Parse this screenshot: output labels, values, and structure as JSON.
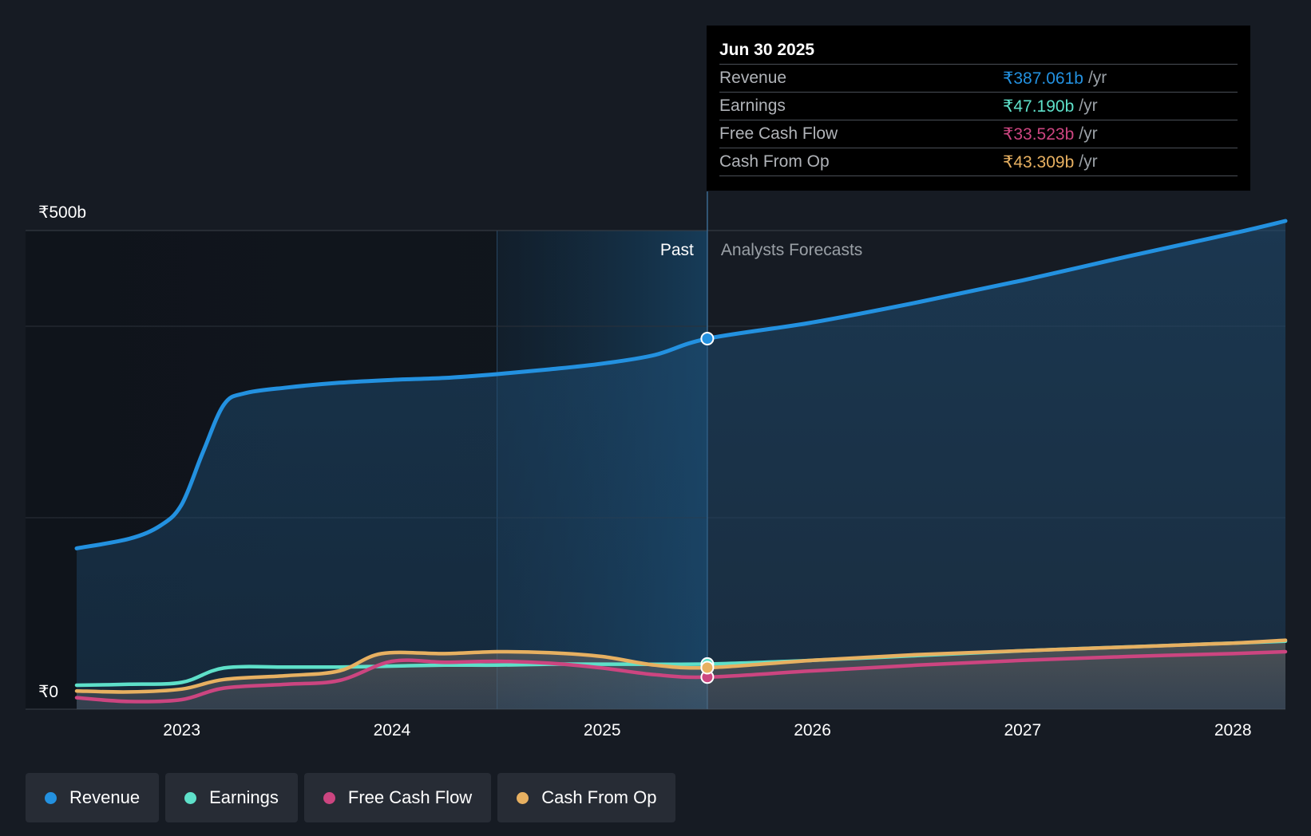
{
  "chart_data": {
    "type": "line",
    "y_axis": {
      "top_label": "₹500b",
      "bottom_label": "₹0",
      "ylim": [
        0,
        500
      ],
      "unit": "₹b"
    },
    "x_axis": {
      "ticks": [
        "2023",
        "2024",
        "2025",
        "2026",
        "2027",
        "2028"
      ],
      "xlim": [
        2022.5,
        2028.25
      ]
    },
    "regions": {
      "past_label": "Past",
      "forecast_label": "Analysts Forecasts",
      "divider_x": 2025.5,
      "highlight_start_x": 2024.5
    },
    "series": [
      {
        "name": "Revenue",
        "color": "#2391e0",
        "points": [
          [
            2022.5,
            168
          ],
          [
            2022.75,
            178
          ],
          [
            2022.9,
            192
          ],
          [
            2023.0,
            214
          ],
          [
            2023.1,
            268
          ],
          [
            2023.2,
            318
          ],
          [
            2023.3,
            330
          ],
          [
            2023.5,
            336
          ],
          [
            2023.75,
            341
          ],
          [
            2024.0,
            344
          ],
          [
            2024.25,
            346
          ],
          [
            2024.5,
            350
          ],
          [
            2024.75,
            355
          ],
          [
            2025.0,
            361
          ],
          [
            2025.25,
            370
          ],
          [
            2025.5,
            387.061
          ],
          [
            2026.0,
            404
          ],
          [
            2026.5,
            425
          ],
          [
            2027.0,
            448
          ],
          [
            2027.5,
            473
          ],
          [
            2028.0,
            497
          ],
          [
            2028.25,
            510
          ]
        ]
      },
      {
        "name": "Earnings",
        "color": "#5ee0c9",
        "points": [
          [
            2022.5,
            25
          ],
          [
            2022.75,
            26
          ],
          [
            2023.0,
            28
          ],
          [
            2023.2,
            43
          ],
          [
            2023.5,
            44
          ],
          [
            2023.75,
            44
          ],
          [
            2024.0,
            45
          ],
          [
            2024.25,
            46
          ],
          [
            2024.5,
            46
          ],
          [
            2024.75,
            47
          ],
          [
            2025.0,
            47
          ],
          [
            2025.5,
            47.19
          ],
          [
            2026.0,
            51
          ],
          [
            2026.5,
            56
          ],
          [
            2027.0,
            61
          ],
          [
            2027.5,
            65
          ],
          [
            2028.0,
            69
          ],
          [
            2028.25,
            71
          ]
        ]
      },
      {
        "name": "Free Cash Flow",
        "color": "#cc4580",
        "points": [
          [
            2022.5,
            12
          ],
          [
            2022.75,
            8
          ],
          [
            2023.0,
            10
          ],
          [
            2023.2,
            22
          ],
          [
            2023.5,
            26
          ],
          [
            2023.75,
            30
          ],
          [
            2024.0,
            50
          ],
          [
            2024.25,
            49
          ],
          [
            2024.5,
            50
          ],
          [
            2024.75,
            48
          ],
          [
            2025.0,
            43
          ],
          [
            2025.25,
            36
          ],
          [
            2025.5,
            33.523
          ],
          [
            2026.0,
            40
          ],
          [
            2026.5,
            46
          ],
          [
            2027.0,
            51
          ],
          [
            2027.5,
            55
          ],
          [
            2028.0,
            58
          ],
          [
            2028.25,
            60
          ]
        ]
      },
      {
        "name": "Cash From Op",
        "color": "#e7b061",
        "points": [
          [
            2022.5,
            19
          ],
          [
            2022.75,
            18
          ],
          [
            2023.0,
            21
          ],
          [
            2023.2,
            31
          ],
          [
            2023.5,
            35
          ],
          [
            2023.75,
            40
          ],
          [
            2023.95,
            58
          ],
          [
            2024.25,
            58
          ],
          [
            2024.5,
            60
          ],
          [
            2024.75,
            59
          ],
          [
            2025.0,
            55
          ],
          [
            2025.25,
            46
          ],
          [
            2025.5,
            43.309
          ],
          [
            2026.0,
            51
          ],
          [
            2026.5,
            57
          ],
          [
            2027.0,
            61
          ],
          [
            2027.5,
            65
          ],
          [
            2028.0,
            69
          ],
          [
            2028.25,
            72
          ]
        ]
      }
    ]
  },
  "tooltip": {
    "date": "Jun 30 2025",
    "rows": [
      {
        "label": "Revenue",
        "value": "₹387.061b",
        "unit": "/yr",
        "color": "#2391e0"
      },
      {
        "label": "Earnings",
        "value": "₹47.190b",
        "unit": "/yr",
        "color": "#5ee0c9"
      },
      {
        "label": "Free Cash Flow",
        "value": "₹33.523b",
        "unit": "/yr",
        "color": "#cc4580"
      },
      {
        "label": "Cash From Op",
        "value": "₹43.309b",
        "unit": "/yr",
        "color": "#e7b061"
      }
    ]
  },
  "legend": [
    {
      "label": "Revenue",
      "color": "#2391e0"
    },
    {
      "label": "Earnings",
      "color": "#5ee0c9"
    },
    {
      "label": "Free Cash Flow",
      "color": "#cc4580"
    },
    {
      "label": "Cash From Op",
      "color": "#e7b061"
    }
  ]
}
